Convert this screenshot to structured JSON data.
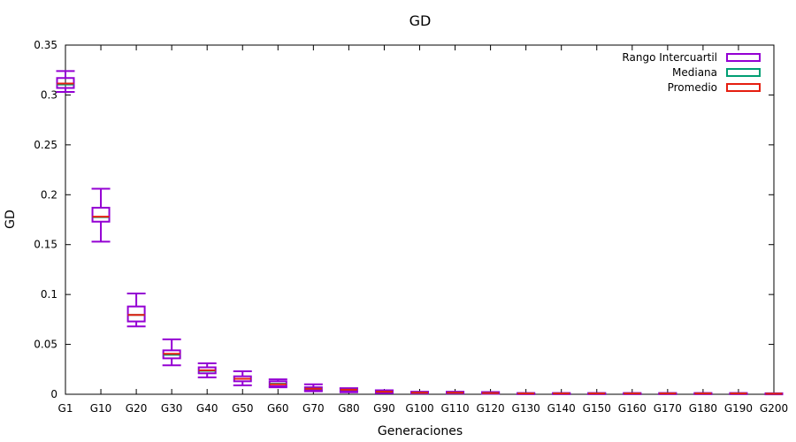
{
  "chart_data": {
    "type": "boxplot",
    "title": "GD",
    "xlabel": "Generaciones",
    "ylabel": "GD",
    "ylim": [
      0,
      0.35
    ],
    "yticks": [
      0,
      0.05,
      0.1,
      0.15,
      0.2,
      0.25,
      0.3,
      0.35
    ],
    "ytick_labels": [
      "0",
      "0.05",
      "0.1",
      "0.15",
      "0.2",
      "0.25",
      "0.3",
      "0.35"
    ],
    "grid": false,
    "legend_position": "top-right",
    "legend": [
      {
        "label": "Rango Intercuartil",
        "color": "#9400d3"
      },
      {
        "label": "Mediana",
        "color": "#009e73"
      },
      {
        "label": "Promedio",
        "color": "#e51e10"
      }
    ],
    "categories": [
      "G1",
      "G10",
      "G20",
      "G30",
      "G40",
      "G50",
      "G60",
      "G70",
      "G80",
      "G90",
      "G100",
      "G110",
      "G120",
      "G130",
      "G140",
      "G150",
      "G160",
      "G170",
      "G180",
      "G190",
      "G200"
    ],
    "boxes": [
      {
        "min": 0.303,
        "q1": 0.307,
        "median": 0.3105,
        "mean": 0.3115,
        "q3": 0.317,
        "max": 0.324
      },
      {
        "min": 0.153,
        "q1": 0.173,
        "median": 0.1775,
        "mean": 0.178,
        "q3": 0.187,
        "max": 0.206
      },
      {
        "min": 0.068,
        "q1": 0.073,
        "median": 0.0795,
        "mean": 0.0795,
        "q3": 0.088,
        "max": 0.101
      },
      {
        "min": 0.029,
        "q1": 0.036,
        "median": 0.0395,
        "mean": 0.0405,
        "q3": 0.044,
        "max": 0.055
      },
      {
        "min": 0.017,
        "q1": 0.021,
        "median": 0.0235,
        "mean": 0.024,
        "q3": 0.027,
        "max": 0.031
      },
      {
        "min": 0.009,
        "q1": 0.013,
        "median": 0.0155,
        "mean": 0.0155,
        "q3": 0.018,
        "max": 0.023
      },
      {
        "min": 0.007,
        "q1": 0.008,
        "median": 0.0105,
        "mean": 0.01,
        "q3": 0.013,
        "max": 0.015
      },
      {
        "min": 0.003,
        "q1": 0.004,
        "median": 0.0055,
        "mean": 0.0055,
        "q3": 0.007,
        "max": 0.01
      },
      {
        "min": 0.002,
        "q1": 0.003,
        "median": 0.0045,
        "mean": 0.0045,
        "q3": 0.006,
        "max": 0.006
      },
      {
        "min": 0.001,
        "q1": 0.002,
        "median": 0.0025,
        "mean": 0.0025,
        "q3": 0.004,
        "max": 0.004
      },
      {
        "min": 0.0008,
        "q1": 0.001,
        "median": 0.0015,
        "mean": 0.0015,
        "q3": 0.002,
        "max": 0.0025
      },
      {
        "min": 0.0008,
        "q1": 0.001,
        "median": 0.0015,
        "mean": 0.0015,
        "q3": 0.002,
        "max": 0.0025
      },
      {
        "min": 0.0006,
        "q1": 0.0008,
        "median": 0.0012,
        "mean": 0.0012,
        "q3": 0.002,
        "max": 0.0022
      },
      {
        "min": 0.0003,
        "q1": 0.0005,
        "median": 0.0008,
        "mean": 0.0008,
        "q3": 0.001,
        "max": 0.0012
      },
      {
        "min": 0.0003,
        "q1": 0.0005,
        "median": 0.0008,
        "mean": 0.0008,
        "q3": 0.001,
        "max": 0.0012
      },
      {
        "min": 0.0003,
        "q1": 0.0005,
        "median": 0.0008,
        "mean": 0.0008,
        "q3": 0.001,
        "max": 0.0012
      },
      {
        "min": 0.0003,
        "q1": 0.0005,
        "median": 0.0008,
        "mean": 0.0008,
        "q3": 0.001,
        "max": 0.0012
      },
      {
        "min": 0.0003,
        "q1": 0.0005,
        "median": 0.0008,
        "mean": 0.0008,
        "q3": 0.001,
        "max": 0.0012
      },
      {
        "min": 0.0003,
        "q1": 0.0005,
        "median": 0.0008,
        "mean": 0.0008,
        "q3": 0.001,
        "max": 0.0012
      },
      {
        "min": 0.0003,
        "q1": 0.0005,
        "median": 0.0008,
        "mean": 0.0008,
        "q3": 0.001,
        "max": 0.0012
      },
      {
        "min": 0.0002,
        "q1": 0.0004,
        "median": 0.0006,
        "mean": 0.0006,
        "q3": 0.0008,
        "max": 0.001
      }
    ]
  }
}
